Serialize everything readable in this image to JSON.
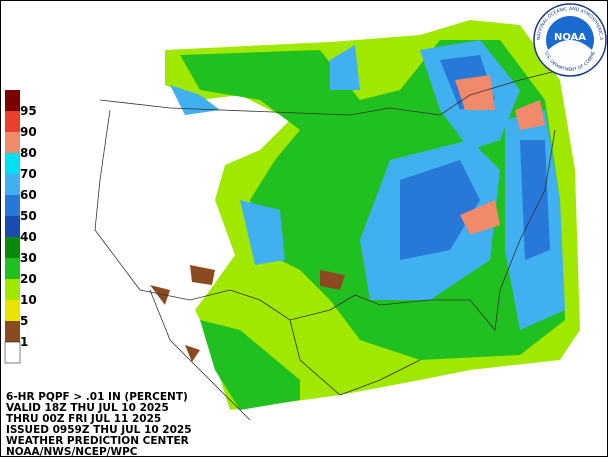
{
  "legend": [
    {
      "label": "95",
      "color": "#7a0000"
    },
    {
      "label": "90",
      "color": "#e8402a"
    },
    {
      "label": "80",
      "color": "#f08a6a"
    },
    {
      "label": "70",
      "color": "#00e0f0"
    },
    {
      "label": "60",
      "color": "#40b0f0"
    },
    {
      "label": "50",
      "color": "#2878d8"
    },
    {
      "label": "40",
      "color": "#1a4cb0"
    },
    {
      "label": "30",
      "color": "#0a8a0a"
    },
    {
      "label": "20",
      "color": "#20c020"
    },
    {
      "label": "10",
      "color": "#a0e800"
    },
    {
      "label": "5",
      "color": "#e8e400"
    },
    {
      "label": "1",
      "color": "#8b4a20"
    }
  ],
  "caption": [
    "6-HR PQPF > .01 IN (PERCENT)",
    "VALID 18Z THU JUL 10 2025",
    "THRU 00Z FRI JUL 11 2025",
    "ISSUED 0959Z THU JUL 10 2025",
    "WEATHER PREDICTION CENTER",
    "NOAA/NWS/NCEP/WPC"
  ],
  "logo": {
    "name": "NOAA",
    "ring_top": "NATIONAL OCEANIC AND ATMOSPHERIC ADMINISTRATION",
    "ring_bottom": "U.S. DEPARTMENT OF COMMERCE"
  }
}
